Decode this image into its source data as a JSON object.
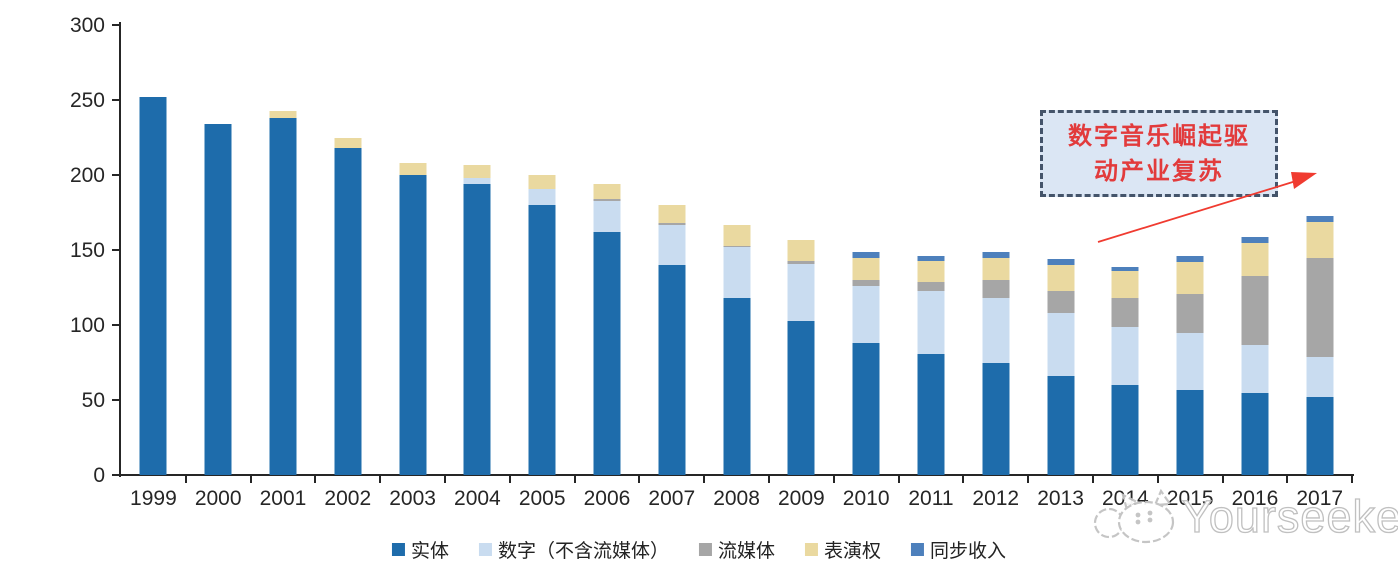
{
  "watermark": {
    "brand": "Yourseeker"
  },
  "annotation": {
    "line1": "数字音乐崛起驱",
    "line2": "动产业复苏"
  },
  "colors": {
    "axis": "#262626",
    "annotation_bg": "#dbe6f4",
    "annotation_border": "#44546a",
    "annotation_text": "#e23b3c",
    "arrow": "#f03b30",
    "watermark_outline": "#bdbdbd"
  },
  "chart_data": {
    "type": "bar",
    "subtype": "stacked",
    "title": "",
    "xlabel": "",
    "ylabel": "",
    "ylim": [
      0,
      300
    ],
    "yticks": [
      0,
      50,
      100,
      150,
      200,
      250,
      300
    ],
    "grid": false,
    "legend_position": "bottom",
    "categories": [
      "1999",
      "2000",
      "2001",
      "2002",
      "2003",
      "2004",
      "2005",
      "2006",
      "2007",
      "2008",
      "2009",
      "2010",
      "2011",
      "2012",
      "2013",
      "2014",
      "2015",
      "2016",
      "2017"
    ],
    "series": [
      {
        "name": "实体",
        "color": "#1e6cab",
        "values": [
          252,
          234,
          238,
          218,
          200,
          194,
          180,
          162,
          140,
          118,
          103,
          88,
          81,
          75,
          66,
          60,
          57,
          55,
          52
        ]
      },
      {
        "name": "数字（不含流媒体）",
        "color": "#c9dcf0",
        "values": [
          0,
          0,
          0,
          0,
          0,
          4,
          11,
          21,
          27,
          34,
          38,
          38,
          42,
          43,
          42,
          39,
          38,
          32,
          27
        ]
      },
      {
        "name": "流媒体",
        "color": "#a6a6a6",
        "values": [
          0,
          0,
          0,
          0,
          0,
          0,
          0,
          1,
          1,
          1,
          2,
          4,
          6,
          12,
          15,
          19,
          26,
          46,
          66
        ]
      },
      {
        "name": "表演权",
        "color": "#ead9a0",
        "values": [
          0,
          0,
          5,
          7,
          8,
          9,
          9,
          10,
          12,
          14,
          14,
          15,
          14,
          15,
          17,
          18,
          21,
          22,
          24
        ]
      },
      {
        "name": "同步收入",
        "color": "#4d80bc",
        "values": [
          0,
          0,
          0,
          0,
          0,
          0,
          0,
          0,
          0,
          0,
          0,
          4,
          3,
          4,
          4,
          3,
          4,
          4,
          4
        ]
      }
    ],
    "totals": [
      252,
      234,
      243,
      225,
      208,
      207,
      200,
      194,
      180,
      167,
      157,
      149,
      146,
      149,
      144,
      139,
      146,
      159,
      173
    ]
  }
}
